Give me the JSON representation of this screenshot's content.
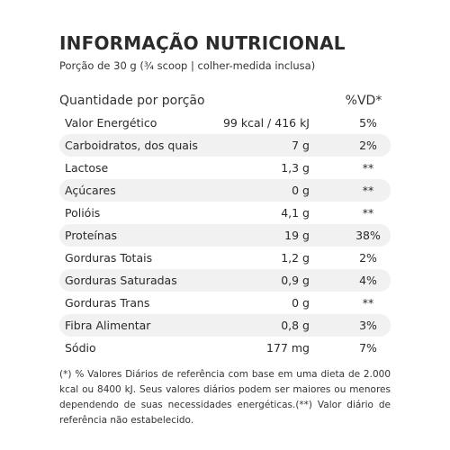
{
  "title": "INFORMAÇÃO NUTRICIONAL",
  "serving": "Porção de 30 g (¾ scoop | colher-medida inclusa)",
  "header": {
    "label": "Quantidade por porção",
    "vd": "%VD*"
  },
  "rows": [
    {
      "name": "Valor Energético",
      "amount": "99 kcal / 416 kJ",
      "vd": "5%"
    },
    {
      "name": "Carboidratos, dos quais",
      "amount": "7 g",
      "vd": "2%"
    },
    {
      "name": "Lactose",
      "amount": "1,3 g",
      "vd": "**"
    },
    {
      "name": "Açúcares",
      "amount": "0 g",
      "vd": "**"
    },
    {
      "name": "Polióis",
      "amount": "4,1 g",
      "vd": "**"
    },
    {
      "name": "Proteínas",
      "amount": "19 g",
      "vd": "38%"
    },
    {
      "name": "Gorduras Totais",
      "amount": "1,2 g",
      "vd": "2%"
    },
    {
      "name": "Gorduras Saturadas",
      "amount": "0,9 g",
      "vd": "4%"
    },
    {
      "name": "Gorduras Trans",
      "amount": "0 g",
      "vd": "**"
    },
    {
      "name": "Fibra Alimentar",
      "amount": "0,8 g",
      "vd": "3%"
    },
    {
      "name": "Sódio",
      "amount": "177 mg",
      "vd": "7%"
    }
  ],
  "footnote": "(*) % Valores Diários de referência com base em uma dieta de 2.000 kcal ou 8400 kJ. Seus valores diários podem ser maiores ou menores dependendo de suas necessidades energéticas.(**) Valor diário de referência não estabelecido."
}
